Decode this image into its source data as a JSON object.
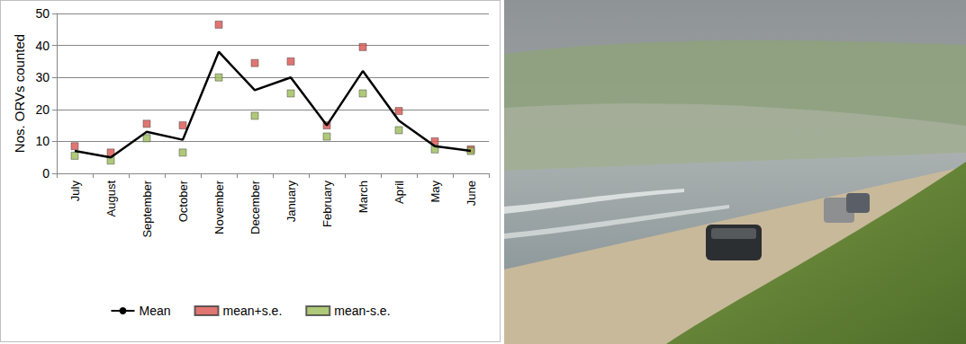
{
  "chart_data": {
    "type": "line",
    "ylabel": "Nos. ORVs counted",
    "categories": [
      "July",
      "August",
      "September",
      "October",
      "November",
      "December",
      "January",
      "February",
      "March",
      "April",
      "May",
      "June"
    ],
    "series": [
      {
        "name": "Mean",
        "type": "line",
        "color": "#000000",
        "line_style": "solid",
        "values": [
          7,
          5,
          13,
          10.5,
          38,
          26,
          30,
          15,
          32,
          16.5,
          8.5,
          7
        ]
      },
      {
        "name": "mean+s.e.",
        "type": "scatter",
        "color": "#d9534f",
        "marker": "square",
        "values": [
          8.5,
          6.5,
          15.5,
          15,
          46.5,
          34.5,
          35,
          15,
          39.5,
          19.5,
          10,
          7.5
        ]
      },
      {
        "name": "mean-s.e.",
        "type": "scatter",
        "color": "#9bbb59",
        "marker": "square",
        "values": [
          5.5,
          4,
          11,
          6.5,
          30,
          18,
          25,
          11.5,
          25,
          13.5,
          7.5,
          7
        ]
      }
    ],
    "ylim": [
      0,
      50
    ],
    "yticks": [
      0,
      10,
      20,
      30,
      40,
      50
    ],
    "grid": true,
    "legend": "bottom"
  }
}
